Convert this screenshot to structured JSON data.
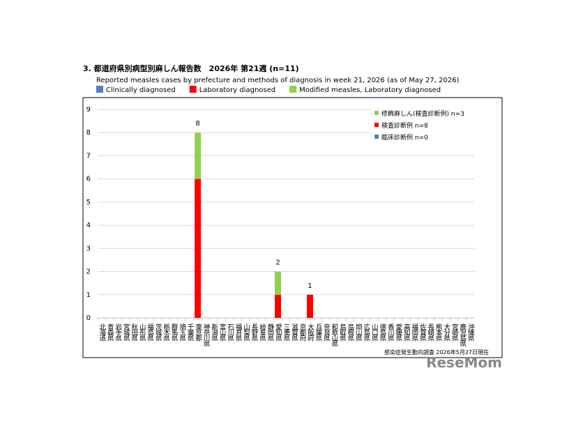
{
  "chart_data": {
    "type": "stacked-bar",
    "title": "3. 都道府県別病型別麻しん報告数　2026年 第21週 (n=11)",
    "subtitle": "Reported measles cases by prefecture and methods of diagnosis in week 21, 2026 (as of May 27, 2026)",
    "categories": [
      "北海道",
      "青森県",
      "岩手県",
      "宮城県",
      "秋田県",
      "山形県",
      "福島県",
      "茨城県",
      "栃木県",
      "群馬県",
      "埼玉県",
      "千葉県",
      "東京都",
      "神奈川県",
      "新潟県",
      "富山県",
      "石川県",
      "福井県",
      "山梨県",
      "長野県",
      "岐阜県",
      "静岡県",
      "愛知県",
      "三重県",
      "滋賀県",
      "京都府",
      "大阪府",
      "兵庫県",
      "奈良県",
      "和歌山県",
      "鳥取県",
      "島根県",
      "岡山県",
      "広島県",
      "山口県",
      "徳島県",
      "香川県",
      "愛媛県",
      "高知県",
      "福岡県",
      "佐賀県",
      "長崎県",
      "熊本県",
      "大分県",
      "宮崎県",
      "鹿児島県",
      "沖縄県"
    ],
    "series": [
      {
        "name": "Clinically diagnosed",
        "label_ja": "臨床診断例 n=0",
        "color": "#4f81bd",
        "values": [
          0,
          0,
          0,
          0,
          0,
          0,
          0,
          0,
          0,
          0,
          0,
          0,
          0,
          0,
          0,
          0,
          0,
          0,
          0,
          0,
          0,
          0,
          0,
          0,
          0,
          0,
          0,
          0,
          0,
          0,
          0,
          0,
          0,
          0,
          0,
          0,
          0,
          0,
          0,
          0,
          0,
          0,
          0,
          0,
          0,
          0,
          0
        ]
      },
      {
        "name": "Laboratory diagnosed",
        "label_ja": "検査診断例 n=8",
        "color": "#ff0000",
        "values": [
          0,
          0,
          0,
          0,
          0,
          0,
          0,
          0,
          0,
          0,
          0,
          0,
          6,
          0,
          0,
          0,
          0,
          0,
          0,
          0,
          0,
          0,
          1,
          0,
          0,
          0,
          1,
          0,
          0,
          0,
          0,
          0,
          0,
          0,
          0,
          0,
          0,
          0,
          0,
          0,
          0,
          0,
          0,
          0,
          0,
          0,
          0
        ]
      },
      {
        "name": "Modified measles, Laboratory diagnosed",
        "label_ja": "修飾麻しん(検査診断例) n=3",
        "color": "#92d050",
        "values": [
          0,
          0,
          0,
          0,
          0,
          0,
          0,
          0,
          0,
          0,
          0,
          0,
          2,
          0,
          0,
          0,
          0,
          0,
          0,
          0,
          0,
          0,
          1,
          0,
          0,
          0,
          0,
          0,
          0,
          0,
          0,
          0,
          0,
          0,
          0,
          0,
          0,
          0,
          0,
          0,
          0,
          0,
          0,
          0,
          0,
          0,
          0
        ]
      }
    ],
    "totals": [
      null,
      null,
      null,
      null,
      null,
      null,
      null,
      null,
      null,
      null,
      null,
      null,
      8,
      null,
      null,
      null,
      null,
      null,
      null,
      null,
      null,
      null,
      2,
      null,
      null,
      null,
      1,
      null,
      null,
      null,
      null,
      null,
      null,
      null,
      null,
      null,
      null,
      null,
      null,
      null,
      null,
      null,
      null,
      null,
      null,
      null,
      null
    ],
    "ylim": [
      0,
      9
    ],
    "yticks": [
      0,
      1,
      2,
      3,
      4,
      5,
      6,
      7,
      8,
      9
    ],
    "grid": true,
    "source": "感染症発生動向調査 2026年5月27日現在",
    "watermark": "ReseMom"
  }
}
